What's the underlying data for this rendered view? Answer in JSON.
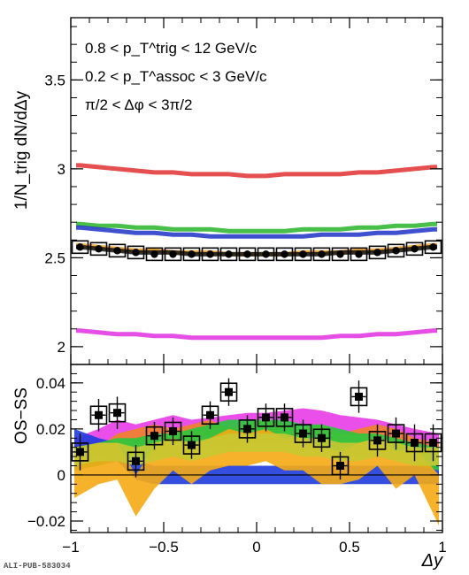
{
  "chart_data": [
    {
      "type": "line",
      "panel": "top",
      "ylabel": "1/N_trig dN/dΔy",
      "xlim": [
        -1,
        1
      ],
      "ylim": [
        1.9,
        3.85
      ],
      "yticks": [
        2,
        2.5,
        3,
        3.5
      ],
      "ytick_labels": [
        "2",
        "2.5",
        "3",
        "3.5"
      ],
      "annotations": [
        "0.8 < p_T^trig < 12 GeV/c",
        "0.2 < p_T^assoc < 3 GeV/c",
        "π/2 < Δφ < 3π/2"
      ],
      "x": [
        -0.95,
        -0.85,
        -0.75,
        -0.65,
        -0.55,
        -0.45,
        -0.35,
        -0.25,
        -0.15,
        -0.05,
        0.05,
        0.15,
        0.25,
        0.35,
        0.45,
        0.55,
        0.65,
        0.75,
        0.85,
        0.95
      ],
      "series": [
        {
          "color": "#e03030",
          "values": [
            3.02,
            3.01,
            3.0,
            2.99,
            2.98,
            2.98,
            2.97,
            2.97,
            2.97,
            2.96,
            2.96,
            2.97,
            2.97,
            2.97,
            2.97,
            2.98,
            2.98,
            2.99,
            3.0,
            3.01
          ]
        },
        {
          "color": "#28b428",
          "values": [
            2.69,
            2.68,
            2.68,
            2.67,
            2.67,
            2.66,
            2.66,
            2.66,
            2.65,
            2.65,
            2.65,
            2.65,
            2.66,
            2.66,
            2.66,
            2.67,
            2.67,
            2.68,
            2.68,
            2.69
          ]
        },
        {
          "color": "#1e32c8",
          "values": [
            2.67,
            2.66,
            2.65,
            2.64,
            2.64,
            2.63,
            2.63,
            2.62,
            2.62,
            2.62,
            2.62,
            2.62,
            2.62,
            2.63,
            2.63,
            2.63,
            2.64,
            2.64,
            2.65,
            2.66
          ]
        },
        {
          "color": "#f0a020",
          "values": [
            2.57,
            2.56,
            2.55,
            2.54,
            2.54,
            2.53,
            2.53,
            2.53,
            2.52,
            2.52,
            2.52,
            2.52,
            2.53,
            2.53,
            2.53,
            2.54,
            2.54,
            2.55,
            2.56,
            2.57
          ]
        },
        {
          "color": "#101010",
          "values": [
            2.56,
            2.55,
            2.54,
            2.53,
            2.53,
            2.53,
            2.52,
            2.52,
            2.52,
            2.52,
            2.52,
            2.52,
            2.52,
            2.52,
            2.53,
            2.53,
            2.53,
            2.54,
            2.55,
            2.56
          ]
        },
        {
          "color": "#e030e0",
          "values": [
            2.09,
            2.08,
            2.07,
            2.07,
            2.06,
            2.06,
            2.05,
            2.05,
            2.05,
            2.05,
            2.05,
            2.05,
            2.05,
            2.05,
            2.06,
            2.06,
            2.07,
            2.07,
            2.08,
            2.09
          ]
        }
      ],
      "data_points": [
        2.56,
        2.55,
        2.54,
        2.53,
        2.52,
        2.52,
        2.52,
        2.52,
        2.52,
        2.52,
        2.52,
        2.52,
        2.52,
        2.52,
        2.52,
        2.52,
        2.53,
        2.54,
        2.55,
        2.56
      ]
    },
    {
      "type": "scatter",
      "panel": "bottom",
      "xlabel": "Δy",
      "ylabel": "OS−SS",
      "xlim": [
        -1,
        1
      ],
      "ylim": [
        -0.025,
        0.048
      ],
      "xticks": [
        -1,
        -0.5,
        0,
        0.5,
        1
      ],
      "xtick_labels": [
        "−1",
        "−0.5",
        "0",
        "0.5",
        "1"
      ],
      "yticks": [
        -0.02,
        0,
        0.02,
        0.04
      ],
      "ytick_labels": [
        "−0.02",
        "0",
        "0.02",
        "0.04"
      ],
      "x": [
        -0.95,
        -0.85,
        -0.75,
        -0.65,
        -0.55,
        -0.45,
        -0.35,
        -0.25,
        -0.15,
        -0.05,
        0.05,
        0.15,
        0.25,
        0.35,
        0.45,
        0.55,
        0.65,
        0.75,
        0.85,
        0.95
      ],
      "y": [
        0.01,
        0.026,
        0.027,
        0.006,
        0.017,
        0.019,
        0.013,
        0.026,
        0.036,
        0.02,
        0.025,
        0.025,
        0.018,
        0.016,
        0.004,
        0.034,
        0.015,
        0.018,
        0.014,
        0.014
      ],
      "yerr": [
        0.008,
        0.007,
        0.007,
        0.007,
        0.006,
        0.006,
        0.006,
        0.006,
        0.006,
        0.006,
        0.006,
        0.006,
        0.006,
        0.006,
        0.006,
        0.007,
        0.007,
        0.007,
        0.008,
        0.008
      ],
      "bands": [
        {
          "color": "#e83ce8",
          "lo": [
            0.008,
            0.012,
            0.016,
            0.014,
            0.016,
            0.018,
            0.016,
            0.017,
            0.018,
            0.019,
            0.019,
            0.02,
            0.021,
            0.02,
            0.018,
            0.017,
            0.016,
            0.014,
            0.012,
            0.01
          ],
          "hi": [
            0.016,
            0.02,
            0.024,
            0.022,
            0.024,
            0.026,
            0.024,
            0.025,
            0.026,
            0.027,
            0.027,
            0.028,
            0.029,
            0.028,
            0.026,
            0.025,
            0.024,
            0.022,
            0.02,
            0.018
          ]
        },
        {
          "color": "#f08228",
          "lo": [
            0.006,
            0.004,
            0.01,
            0.012,
            0.014,
            0.012,
            0.014,
            0.016,
            0.012,
            0.014,
            0.016,
            0.014,
            0.012,
            0.014,
            0.01,
            0.012,
            0.014,
            0.012,
            0.008,
            0.006
          ],
          "hi": [
            0.014,
            0.012,
            0.018,
            0.02,
            0.022,
            0.02,
            0.022,
            0.024,
            0.02,
            0.022,
            0.024,
            0.022,
            0.02,
            0.022,
            0.018,
            0.02,
            0.022,
            0.02,
            0.016,
            0.014
          ]
        },
        {
          "color": "#1e3cdc",
          "lo": [
            0.012,
            0.008,
            0.006,
            -0.002,
            -0.004,
            -0.004,
            -0.004,
            -0.004,
            -0.004,
            -0.004,
            -0.004,
            -0.004,
            -0.004,
            -0.004,
            -0.004,
            -0.004,
            -0.004,
            -0.004,
            -0.004,
            -0.004
          ],
          "hi": [
            0.02,
            0.016,
            0.014,
            0.006,
            0.004,
            0.004,
            0.004,
            0.004,
            0.004,
            0.004,
            0.004,
            0.004,
            0.004,
            0.004,
            0.004,
            0.004,
            0.004,
            0.004,
            0.004,
            0.004
          ]
        },
        {
          "color": "#28c83c",
          "lo": [
            0.002,
            0.004,
            0.006,
            0.006,
            0.008,
            0.008,
            0.01,
            0.012,
            0.014,
            0.014,
            0.014,
            0.014,
            0.012,
            0.012,
            0.01,
            0.008,
            0.008,
            0.006,
            0.004,
            0.002
          ],
          "hi": [
            0.012,
            0.014,
            0.016,
            0.016,
            0.018,
            0.018,
            0.02,
            0.022,
            0.024,
            0.024,
            0.024,
            0.024,
            0.022,
            0.022,
            0.02,
            0.018,
            0.018,
            0.016,
            0.014,
            0.012
          ]
        },
        {
          "color": "#f5aa14",
          "lo": [
            -0.01,
            -0.004,
            -0.002,
            -0.018,
            -0.006,
            0.002,
            -0.004,
            0.002,
            0.004,
            0.004,
            0.006,
            0.002,
            0.002,
            -0.004,
            -0.004,
            -0.002,
            0.004,
            -0.006,
            0.0,
            -0.022
          ],
          "hi": [
            0.01,
            0.014,
            0.014,
            0.0,
            0.012,
            0.016,
            0.012,
            0.016,
            0.02,
            0.018,
            0.02,
            0.016,
            0.016,
            0.012,
            0.01,
            0.014,
            0.016,
            0.01,
            0.012,
            0.0
          ]
        },
        {
          "color": "#c8c832",
          "lo": [
            0.004,
            0.006,
            0.006,
            0.004,
            0.006,
            0.008,
            0.006,
            0.008,
            0.01,
            0.01,
            0.01,
            0.01,
            0.008,
            0.008,
            0.006,
            0.006,
            0.008,
            0.006,
            0.004,
            0.004
          ],
          "hi": [
            0.012,
            0.014,
            0.014,
            0.012,
            0.014,
            0.016,
            0.014,
            0.016,
            0.018,
            0.018,
            0.018,
            0.018,
            0.016,
            0.016,
            0.014,
            0.014,
            0.016,
            0.014,
            0.012,
            0.012
          ]
        }
      ]
    }
  ],
  "footer_label": "ALI-PUB-583034"
}
